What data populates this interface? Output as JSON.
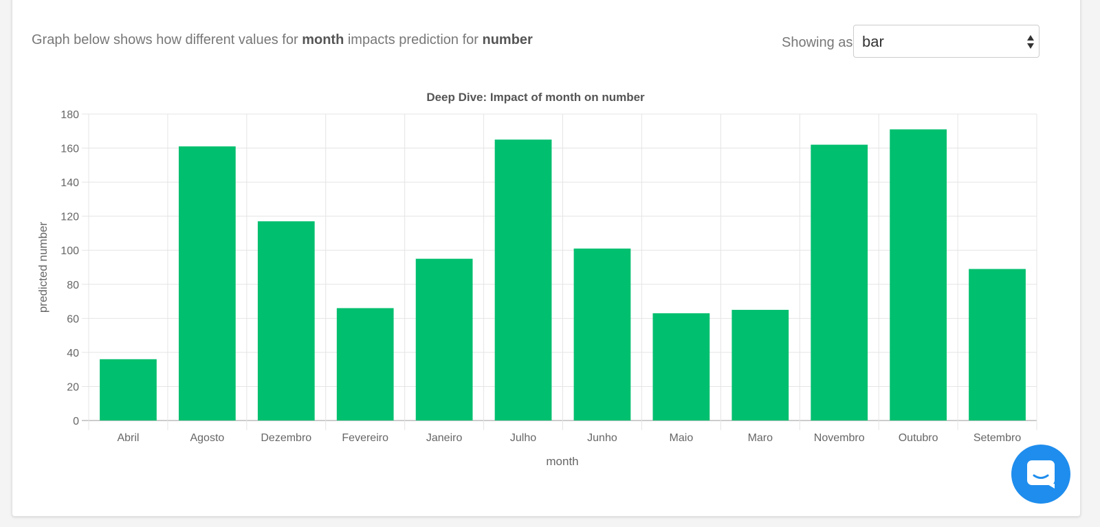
{
  "header": {
    "text_prefix": "Graph below shows how different values for",
    "field": "month",
    "text_middle": "impacts prediction for",
    "target": "number"
  },
  "view_selector": {
    "label": "Showing as:",
    "value": "bar"
  },
  "colors": {
    "bar": "#00bf6f",
    "grid": "#e4e4e4",
    "axis_text": "#666666",
    "chat_button": "#1f8ded"
  },
  "chat_widget": {
    "icon": "chat-icon"
  },
  "chart_data": {
    "type": "bar",
    "title": "Deep Dive: Impact of month on number",
    "xlabel": "month",
    "ylabel": "predicted number",
    "ylim": [
      0,
      180
    ],
    "yticks": [
      "0",
      "20",
      "40",
      "60",
      "80",
      "100",
      "120",
      "140",
      "160",
      "180"
    ],
    "grid": true,
    "categories": [
      "Abril",
      "Agosto",
      "Dezembro",
      "Fevereiro",
      "Janeiro",
      "Julho",
      "Junho",
      "Maio",
      "Maro",
      "Novembro",
      "Outubro",
      "Setembro"
    ],
    "values": [
      36,
      161,
      117,
      66,
      95,
      165,
      101,
      63,
      65,
      162,
      171,
      89
    ]
  }
}
